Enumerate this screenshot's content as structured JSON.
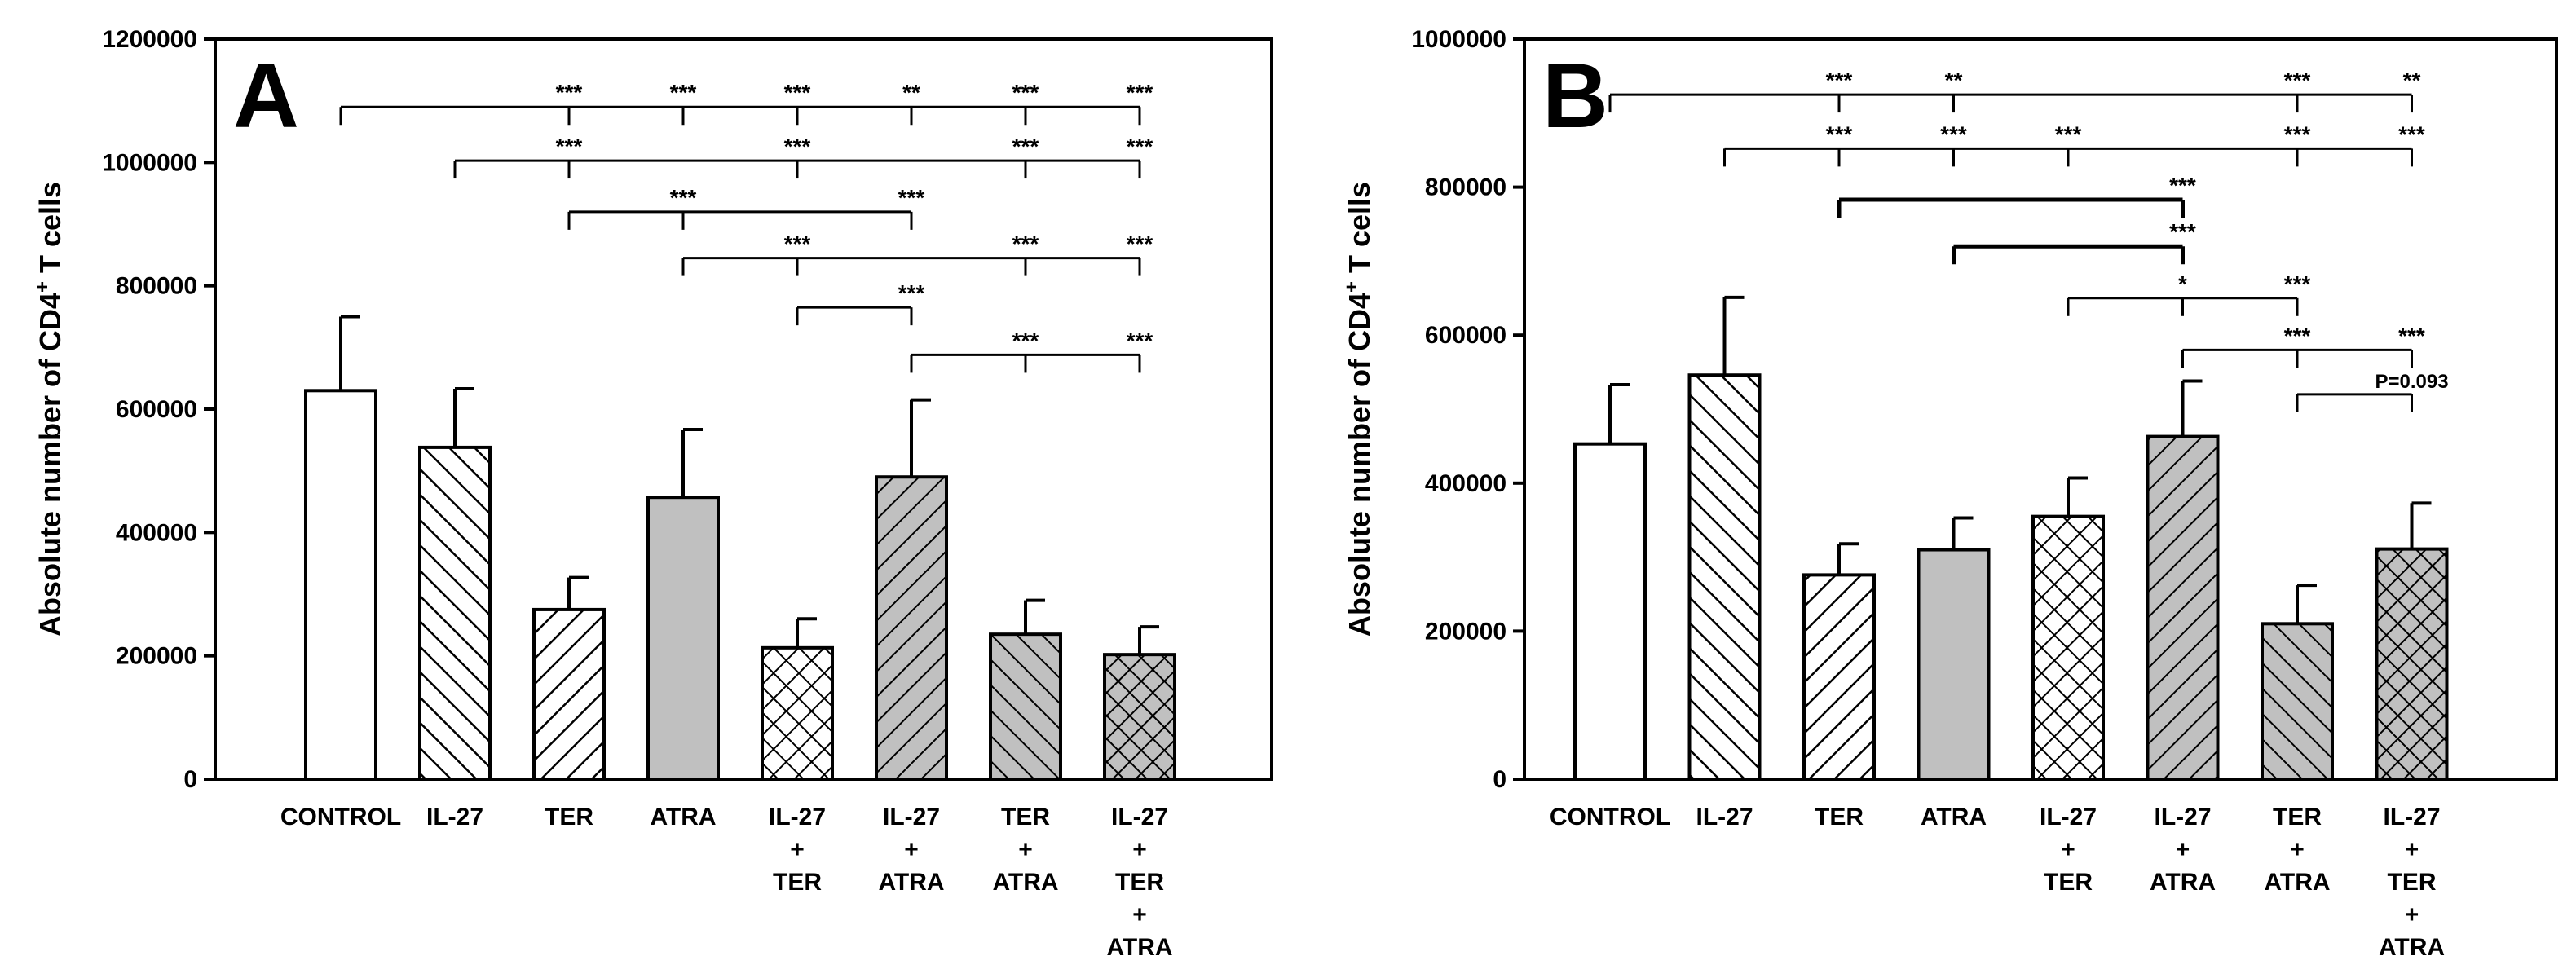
{
  "chart_data": [
    {
      "id": "A",
      "type": "bar",
      "panel_label": "A",
      "ylabel_main": "Absolute number of CD4",
      "ylabel_sup": "+",
      "ylabel_tail": " T cells",
      "ylim": [
        0,
        1200000
      ],
      "yticks": [
        0,
        200000,
        400000,
        600000,
        800000,
        1000000,
        1200000
      ],
      "categories": [
        {
          "lines": [
            "CONTROL"
          ],
          "value": 630000,
          "error": 120000,
          "fill": "white"
        },
        {
          "lines": [
            "IL-27"
          ],
          "value": 538000,
          "error": 95000,
          "fill": "hatch-back"
        },
        {
          "lines": [
            "TER"
          ],
          "value": 275000,
          "error": 52000,
          "fill": "hatch-fwd-white"
        },
        {
          "lines": [
            "ATRA"
          ],
          "value": 457000,
          "error": 110000,
          "fill": "gray"
        },
        {
          "lines": [
            "IL-27",
            "+",
            "TER"
          ],
          "value": 213000,
          "error": 47000,
          "fill": "crosshatch-white"
        },
        {
          "lines": [
            "IL-27",
            "+",
            "ATRA"
          ],
          "value": 490000,
          "error": 125000,
          "fill": "hatch-fwd-gray"
        },
        {
          "lines": [
            "TER",
            "+",
            "ATRA"
          ],
          "value": 235000,
          "error": 55000,
          "fill": "hatch-back-gray"
        },
        {
          "lines": [
            "IL-27",
            "+",
            "TER",
            "+",
            "ATRA"
          ],
          "value": 202000,
          "error": 45000,
          "fill": "crosshatch-gray"
        }
      ],
      "brackets": [
        {
          "from": 0,
          "at": 1090000,
          "marks": [
            {
              "to": 2,
              "label": "***"
            },
            {
              "to": 3,
              "label": "***"
            },
            {
              "to": 4,
              "label": "***"
            },
            {
              "to": 5,
              "label": "**"
            },
            {
              "to": 6,
              "label": "***"
            },
            {
              "to": 7,
              "label": "***"
            }
          ]
        },
        {
          "from": 1,
          "at": 1003000,
          "marks": [
            {
              "to": 2,
              "label": "***"
            },
            {
              "to": 4,
              "label": "***"
            },
            {
              "to": 6,
              "label": "***"
            },
            {
              "to": 7,
              "label": "***"
            }
          ]
        },
        {
          "from": 2,
          "at": 920000,
          "marks": [
            {
              "to": 3,
              "label": "***"
            },
            {
              "to": 5,
              "label": "***"
            }
          ]
        },
        {
          "from": 3,
          "at": 845000,
          "marks": [
            {
              "to": 4,
              "label": "***"
            },
            {
              "to": 6,
              "label": "***"
            },
            {
              "to": 7,
              "label": "***"
            }
          ]
        },
        {
          "from": 4,
          "at": 765000,
          "marks": [
            {
              "to": 5,
              "label": "***"
            }
          ]
        },
        {
          "from": 5,
          "at": 688000,
          "marks": [
            {
              "to": 6,
              "label": "***"
            },
            {
              "to": 7,
              "label": "***"
            }
          ]
        }
      ]
    },
    {
      "id": "B",
      "type": "bar",
      "panel_label": "B",
      "ylabel_main": "Absolute number of CD4",
      "ylabel_sup": "+",
      "ylabel_tail": " T cells",
      "ylim": [
        0,
        1000000
      ],
      "yticks": [
        0,
        200000,
        400000,
        600000,
        800000,
        1000000
      ],
      "categories": [
        {
          "lines": [
            "CONTROL"
          ],
          "value": 453000,
          "error": 80000,
          "fill": "white"
        },
        {
          "lines": [
            "IL-27"
          ],
          "value": 546000,
          "error": 105000,
          "fill": "hatch-back"
        },
        {
          "lines": [
            "TER"
          ],
          "value": 276000,
          "error": 42000,
          "fill": "hatch-fwd-white"
        },
        {
          "lines": [
            "ATRA"
          ],
          "value": 310000,
          "error": 43000,
          "fill": "gray"
        },
        {
          "lines": [
            "IL-27",
            "+",
            "TER"
          ],
          "value": 355000,
          "error": 52000,
          "fill": "crosshatch-white"
        },
        {
          "lines": [
            "IL-27",
            "+",
            "ATRA"
          ],
          "value": 463000,
          "error": 75000,
          "fill": "hatch-fwd-gray"
        },
        {
          "lines": [
            "TER",
            "+",
            "ATRA"
          ],
          "value": 210000,
          "error": 52000,
          "fill": "hatch-back-gray"
        },
        {
          "lines": [
            "IL-27",
            "+",
            "TER",
            "+",
            "ATRA"
          ],
          "value": 311000,
          "error": 62000,
          "fill": "crosshatch-gray"
        }
      ],
      "brackets": [
        {
          "from": 0,
          "at": 925000,
          "marks": [
            {
              "to": 2,
              "label": "***"
            },
            {
              "to": 3,
              "label": "**"
            },
            {
              "to": 6,
              "label": "***"
            },
            {
              "to": 7,
              "label": "**"
            }
          ]
        },
        {
          "from": 1,
          "at": 852000,
          "marks": [
            {
              "to": 2,
              "label": "***"
            },
            {
              "to": 3,
              "label": "***"
            },
            {
              "to": 4,
              "label": "***"
            },
            {
              "to": 6,
              "label": "***"
            },
            {
              "to": 7,
              "label": "***"
            }
          ]
        },
        {
          "from": 2,
          "at": 783000,
          "marks": [
            {
              "to": 5,
              "label": "***"
            }
          ],
          "thick": true
        },
        {
          "from": 3,
          "at": 720000,
          "marks": [
            {
              "to": 5,
              "label": "***"
            }
          ],
          "thick": true
        },
        {
          "from": 4,
          "at": 650000,
          "marks": [
            {
              "to": 5,
              "label": "*"
            },
            {
              "to": 6,
              "label": "***"
            }
          ]
        },
        {
          "from": 5,
          "at": 580000,
          "marks": [
            {
              "to": 6,
              "label": "***"
            },
            {
              "to": 7,
              "label": "***"
            }
          ]
        },
        {
          "from": 6,
          "at": 520000,
          "marks": [
            {
              "to": 7,
              "label": "P=0.093"
            }
          ],
          "small_label": true
        }
      ]
    }
  ]
}
